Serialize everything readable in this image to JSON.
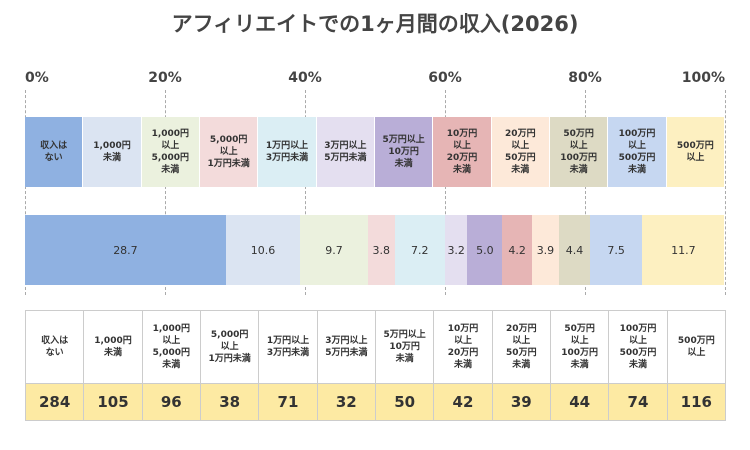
{
  "chart_data": {
    "type": "bar",
    "orientation": "horizontal",
    "stacked": true,
    "title": "アフィリエイトでの1ヶ月間の収入(2026)",
    "categories": [
      "収入は\nない",
      "1,000円\n未満",
      "1,000円\n以上\n5,000円\n未満",
      "5,000円\n以上\n1万円未満",
      "1万円以上\n3万円未満",
      "3万円以上\n5万円未満",
      "5万円以上\n10万円\n未満",
      "10万円\n以上\n20万円\n未満",
      "20万円\n以上\n50万円\n未満",
      "50万円\n以上\n100万円\n未満",
      "100万円\n以上\n500万円\n未満",
      "500万円\n以上"
    ],
    "colors": [
      "#8fb1e1",
      "#dbe4f2",
      "#ebf1de",
      "#f3dbdb",
      "#dbeef4",
      "#e4dff0",
      "#b9aed7",
      "#e6b5b5",
      "#fde9d9",
      "#dddac4",
      "#c6d7f1",
      "#fdf0c1"
    ],
    "series": [
      {
        "values": [
          28.7,
          10.6,
          9.7,
          3.8,
          7.2,
          3.2,
          5.0,
          4.2,
          3.9,
          4.4,
          7.5,
          11.7
        ],
        "value_labels": [
          "28.7",
          "10.6",
          "9.7",
          "3.8",
          "7.2",
          "3.2",
          "5.0",
          "4.2",
          "3.9",
          "4.4",
          "7.5",
          "11.7"
        ]
      }
    ],
    "xlim": [
      0,
      100
    ],
    "xticks": [
      {
        "value": 0,
        "label": "0%"
      },
      {
        "value": 20,
        "label": "20%"
      },
      {
        "value": 40,
        "label": "40%"
      },
      {
        "value": 60,
        "label": "60%"
      },
      {
        "value": 80,
        "label": "80%"
      },
      {
        "value": 100,
        "label": "100%"
      }
    ],
    "grid": true
  },
  "table": {
    "values": [
      284,
      105,
      96,
      38,
      71,
      32,
      50,
      42,
      39,
      44,
      74,
      116
    ]
  }
}
